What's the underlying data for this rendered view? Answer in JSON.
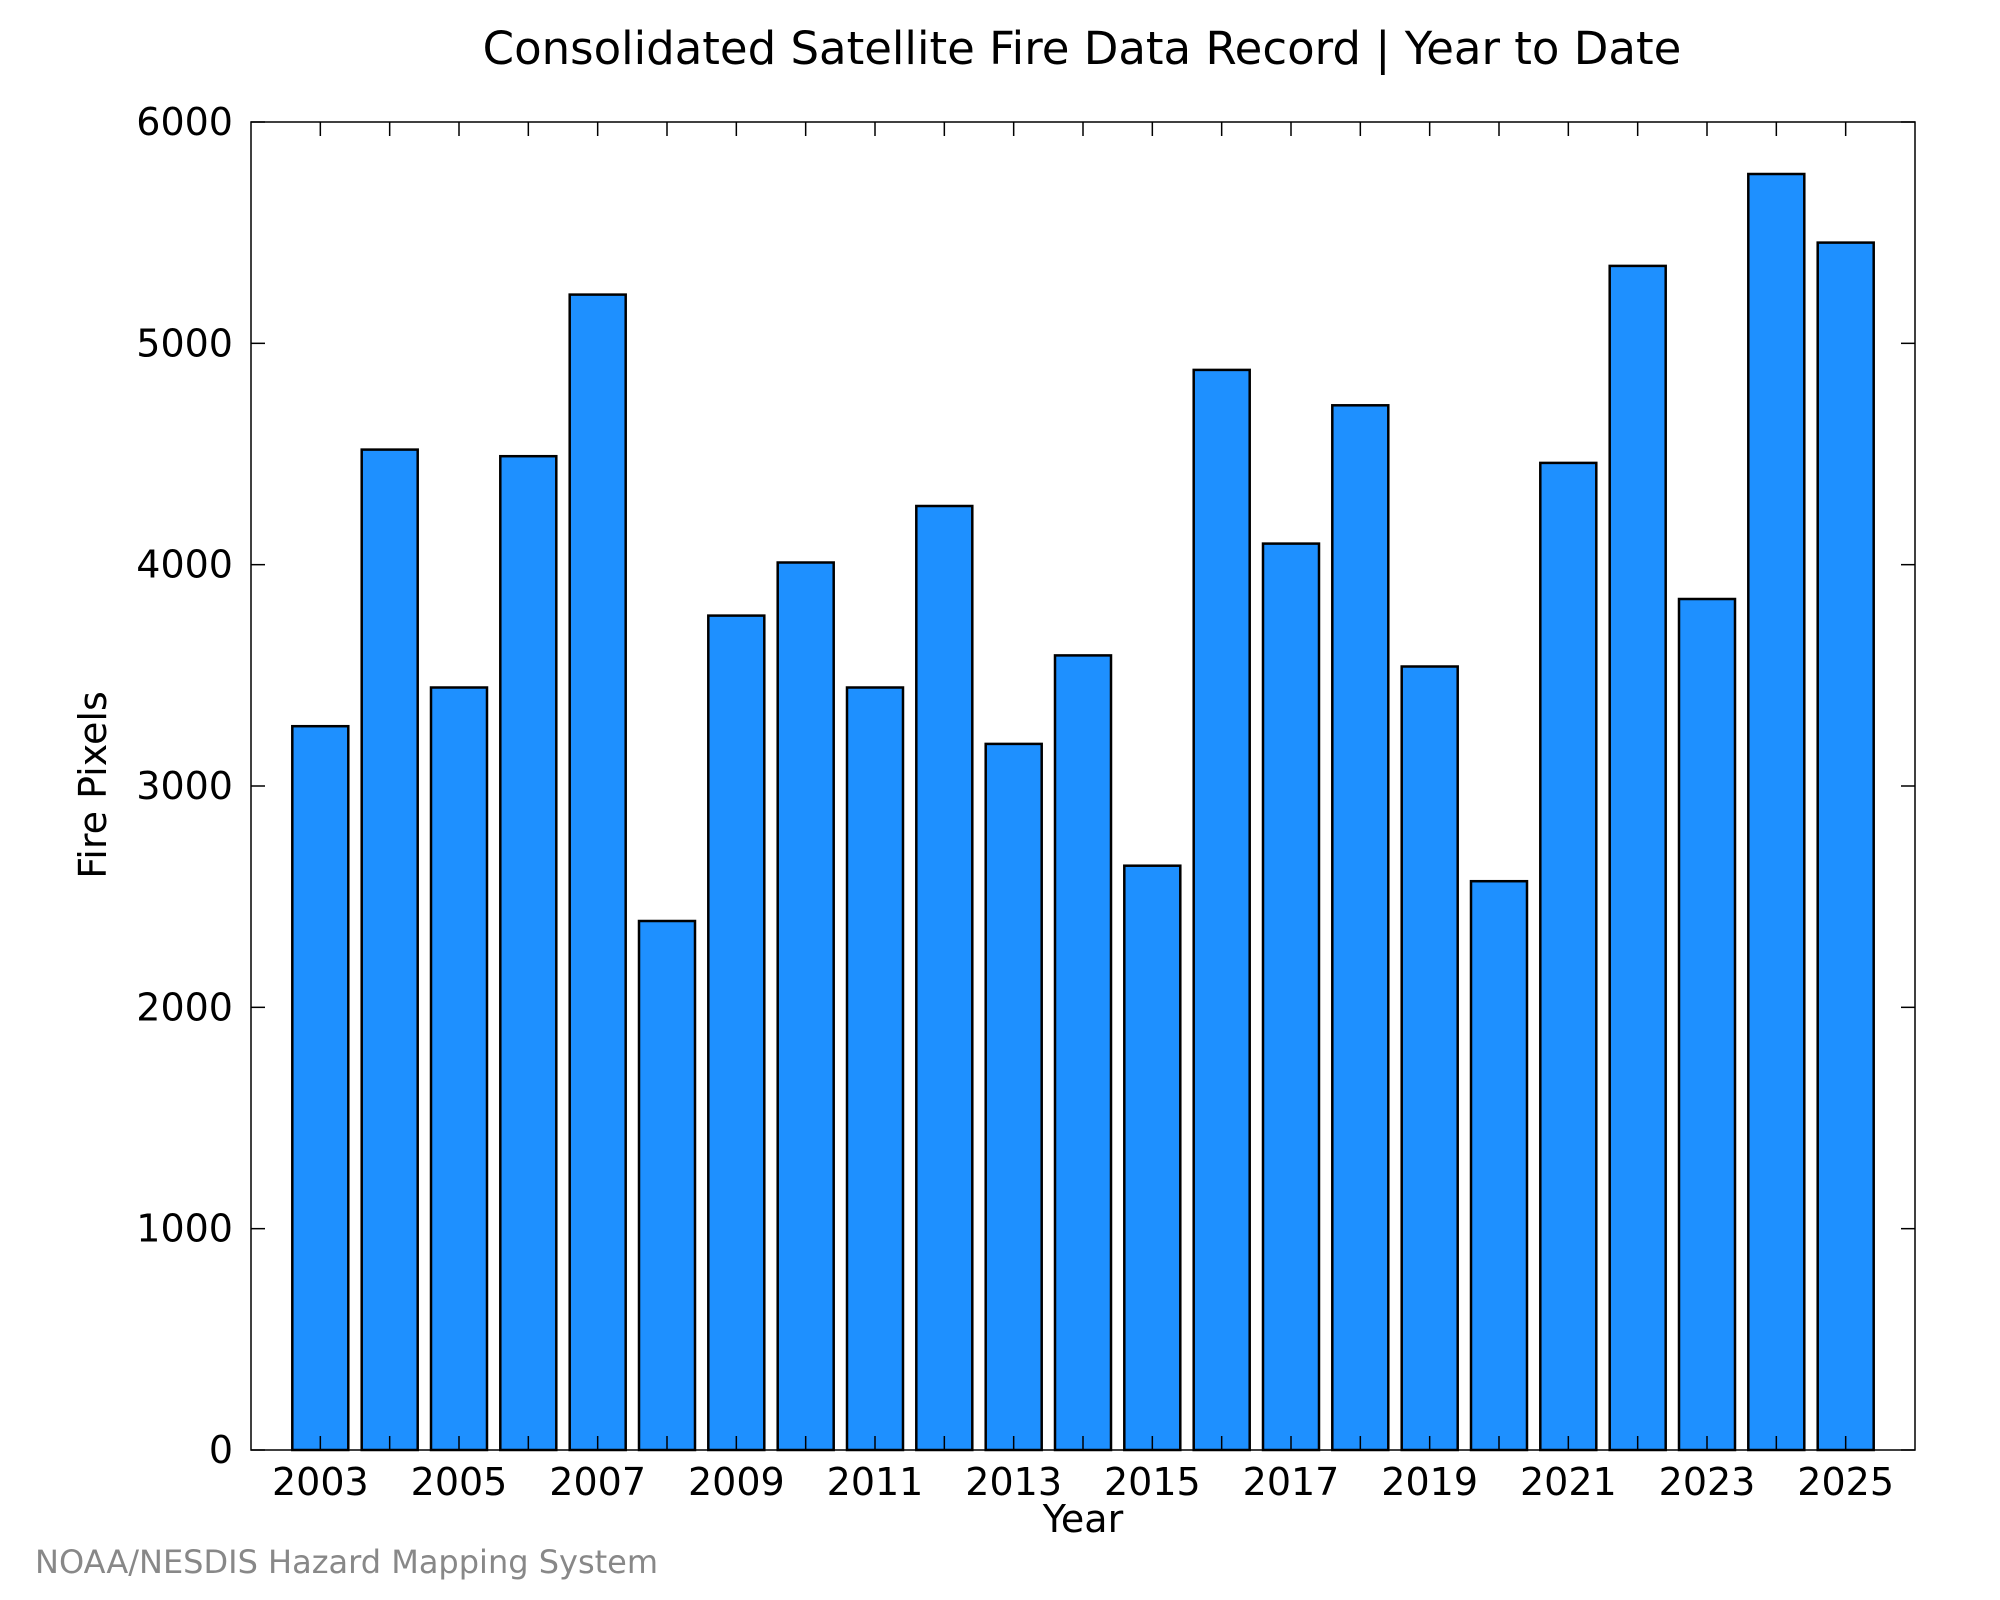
{
  "chart_data": {
    "type": "bar",
    "title": "Consolidated Satellite Fire Data Record | Year to Date",
    "xlabel": "Year",
    "ylabel": "Fire Pixels",
    "categories": [
      "2003",
      "2004",
      "2005",
      "2006",
      "2007",
      "2008",
      "2009",
      "2010",
      "2011",
      "2012",
      "2013",
      "2014",
      "2015",
      "2016",
      "2017",
      "2018",
      "2019",
      "2020",
      "2021",
      "2022",
      "2023",
      "2024",
      "2025"
    ],
    "values": [
      3270,
      4520,
      3445,
      4490,
      5220,
      2390,
      3770,
      4010,
      3445,
      4265,
      3190,
      3590,
      2640,
      4880,
      4095,
      4720,
      3540,
      2570,
      4460,
      5350,
      3845,
      5765,
      5455
    ],
    "x_tick_labels": [
      "2003",
      "2005",
      "2007",
      "2009",
      "2011",
      "2013",
      "2015",
      "2017",
      "2019",
      "2021",
      "2023",
      "2025"
    ],
    "y_tick_labels": [
      "0",
      "1000",
      "2000",
      "3000",
      "4000",
      "5000",
      "6000"
    ],
    "ylim": [
      0,
      6000
    ],
    "grid": false,
    "bar_color": "#1e90ff",
    "credit": "NOAA/NESDIS Hazard Mapping System"
  }
}
